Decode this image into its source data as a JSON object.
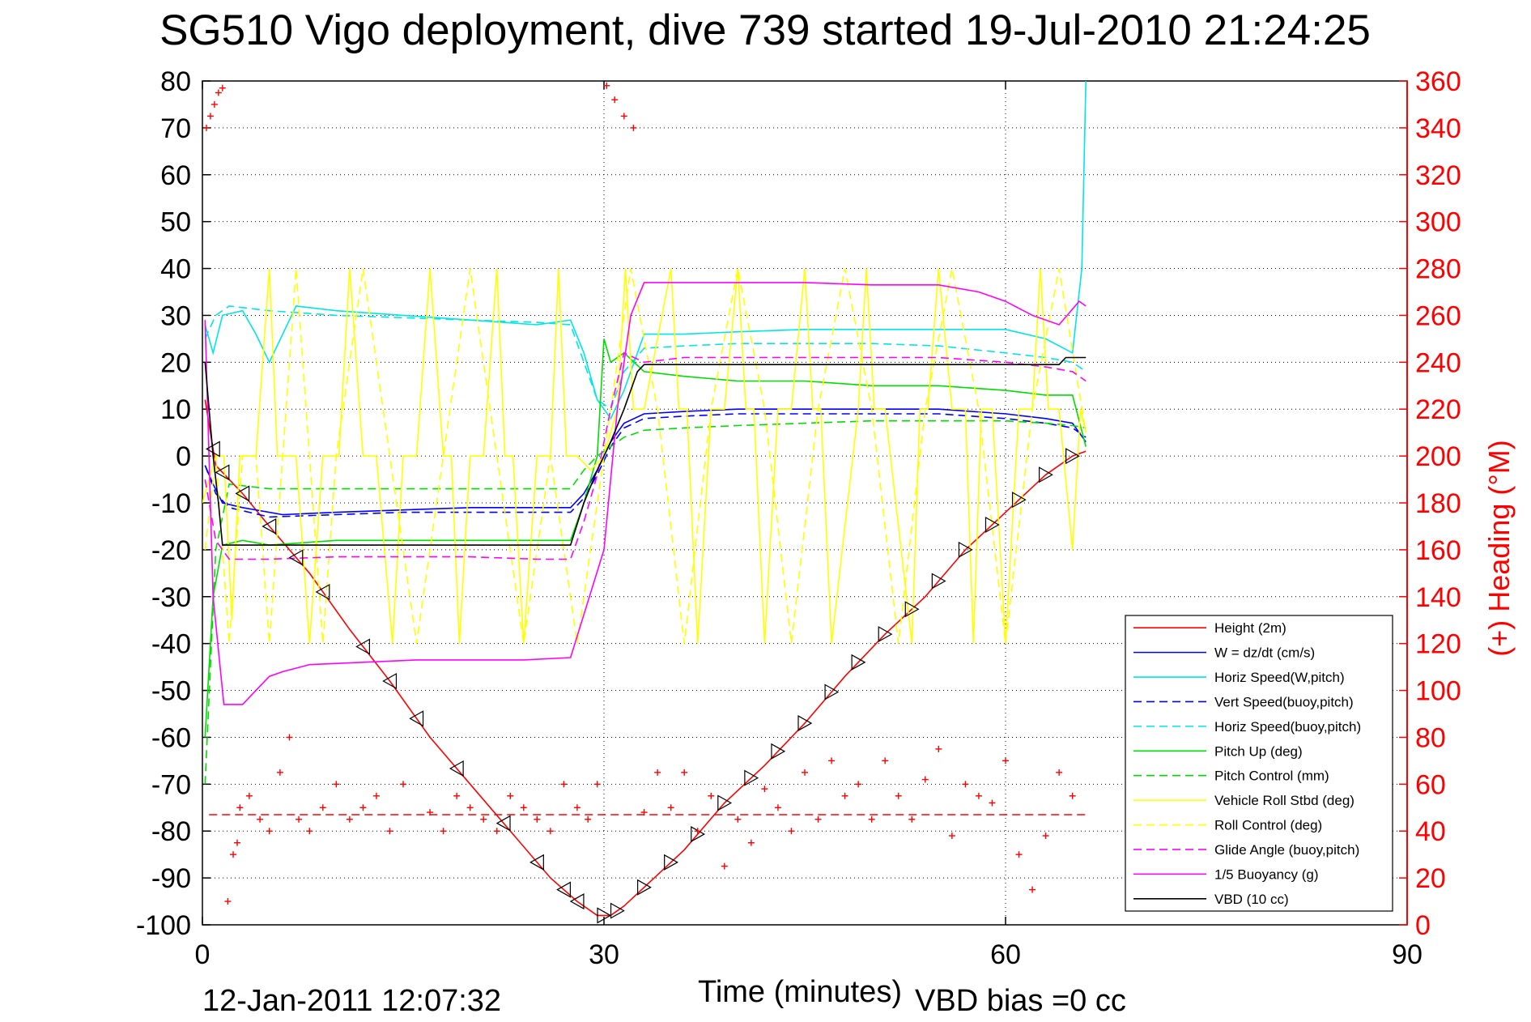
{
  "chart_data": {
    "type": "line",
    "title": "SG510 Vigo deployment, dive 739 started 19-Jul-2010 21:24:25",
    "xlabel": "Time (minutes)",
    "y2label": "(+) Heading (°M)",
    "xlim": [
      0,
      90
    ],
    "ylim": [
      -100,
      80
    ],
    "y2lim": [
      0,
      360
    ],
    "x_ticks": [
      "0",
      "30",
      "60",
      "90"
    ],
    "y_ticks": [
      "80",
      "70",
      "60",
      "50",
      "40",
      "30",
      "20",
      "10",
      "0",
      "-10",
      "-20",
      "-30",
      "-40",
      "-50",
      "-60",
      "-70",
      "-80",
      "-90",
      "-100"
    ],
    "y2_ticks": [
      "360",
      "340",
      "320",
      "300",
      "280",
      "260",
      "240",
      "220",
      "200",
      "180",
      "160",
      "140",
      "120",
      "100",
      "80",
      "60",
      "40",
      "20",
      "0"
    ],
    "grid": true,
    "legend_position": "bottom-right",
    "footer_date": "12-Jan-2011 12:07:32",
    "footer_vbd": "VBD bias =0 cc",
    "series": [
      {
        "name": "Height (2m)",
        "color": "#ff0000",
        "dash": "solid",
        "x": [
          0.2,
          1,
          2,
          3,
          5,
          8,
          11,
          14,
          17,
          20,
          23,
          26,
          28,
          29.5,
          30.5,
          31.5,
          33,
          36,
          39,
          42,
          45,
          48,
          51,
          54,
          57,
          60,
          63,
          65,
          66
        ],
        "y": [
          12,
          -2,
          -5,
          -8,
          -15,
          -25,
          -37,
          -48,
          -60,
          -70,
          -80,
          -90,
          -95,
          -98,
          -98,
          -96,
          -92,
          -84,
          -74,
          -66,
          -57,
          -47,
          -38,
          -30,
          -20,
          -12,
          -4,
          0,
          1
        ]
      },
      {
        "name": "W = dz/dt (cm/s)",
        "color": "#0000ff",
        "dash": "solid",
        "x": [
          0.2,
          0.8,
          1.5,
          3,
          6,
          10,
          15,
          20,
          25,
          27.5,
          28.5,
          29.5,
          30.5,
          31.5,
          33,
          36,
          40,
          45,
          50,
          55,
          60,
          63,
          65,
          66
        ],
        "y": [
          -2,
          -6,
          -10,
          -11,
          -12.5,
          -12,
          -11.5,
          -11,
          -11,
          -11,
          -8,
          -3,
          3,
          7,
          9,
          9.5,
          10,
          10,
          10,
          10,
          9,
          8,
          7,
          3
        ]
      },
      {
        "name": "Horiz Speed(W,pitch)",
        "color": "#00e5e5",
        "dash": "solid",
        "x": [
          0.2,
          0.8,
          1.5,
          3,
          4,
          5,
          7,
          10,
          15,
          20,
          25,
          27.5,
          28.5,
          29.5,
          30.5,
          31.5,
          33,
          36,
          40,
          45,
          50,
          55,
          60,
          63,
          65,
          65.7,
          66
        ],
        "y": [
          28,
          22,
          30,
          31,
          26,
          20,
          32,
          31,
          30,
          29,
          28,
          29,
          22,
          12,
          8,
          14,
          26,
          26,
          26.5,
          27,
          27,
          27,
          27,
          25,
          22,
          40,
          80
        ]
      },
      {
        "name": "Vert Speed(buoy,pitch)",
        "color": "#0000ff",
        "dash": "dashed",
        "x": [
          0.2,
          1,
          2,
          5,
          10,
          15,
          20,
          25,
          27.5,
          28.5,
          29.5,
          30.5,
          31.5,
          33,
          36,
          40,
          45,
          50,
          55,
          60,
          63,
          65,
          66
        ],
        "y": [
          -2,
          -8,
          -11,
          -13,
          -12.5,
          -12,
          -12,
          -12,
          -12,
          -9,
          -4,
          2,
          6,
          8,
          8.5,
          9,
          9,
          9,
          9,
          8,
          7,
          6,
          4
        ]
      },
      {
        "name": "Horiz Speed(buoy,pitch)",
        "color": "#00e5e5",
        "dash": "dashed",
        "x": [
          0.2,
          1,
          2,
          5,
          10,
          15,
          20,
          25,
          27.5,
          28.5,
          29.5,
          30.5,
          31.5,
          33,
          36,
          40,
          45,
          50,
          55,
          60,
          63,
          65,
          66
        ],
        "y": [
          25,
          30,
          32,
          31,
          30,
          29.5,
          29,
          28.5,
          28,
          20,
          12,
          10,
          18,
          23,
          23.5,
          24,
          24,
          24,
          23.5,
          22,
          21,
          20,
          18
        ]
      },
      {
        "name": "Pitch Up (deg)",
        "color": "#00dd00",
        "dash": "solid",
        "x": [
          0.2,
          0.8,
          1.5,
          3,
          5,
          10,
          15,
          20,
          25,
          27.5,
          28.5,
          29.5,
          30,
          30.5,
          31.5,
          33,
          36,
          40,
          45,
          50,
          55,
          60,
          63,
          65,
          66
        ],
        "y": [
          -60,
          -30,
          -19,
          -18,
          -19,
          -18,
          -18,
          -18,
          -18,
          -18,
          -10,
          0,
          25,
          20,
          22,
          18,
          17,
          16,
          16,
          15,
          15,
          14,
          13,
          13,
          2
        ]
      },
      {
        "name": "Pitch Control (mm)",
        "color": "#00dd00",
        "dash": "dashed",
        "x": [
          0.2,
          1,
          2,
          5,
          10,
          15,
          20,
          25,
          27.5,
          28.5,
          29.5,
          30.5,
          31.5,
          33,
          36,
          40,
          45,
          50,
          55,
          60,
          63,
          65,
          66
        ],
        "y": [
          -70,
          -20,
          -6,
          -7,
          -7,
          -7,
          -7,
          -7,
          -7,
          -3,
          0,
          2,
          4,
          5.5,
          6,
          6.5,
          7,
          7.5,
          7.5,
          7.5,
          7,
          6.5,
          6
        ]
      },
      {
        "name": "Vehicle Roll Stbd (deg)",
        "color": "#ffff00",
        "dash": "solid",
        "x": [
          0,
          1,
          1.6,
          2.2,
          2.8,
          4,
          5,
          5.6,
          6.2,
          7,
          8,
          9,
          9.6,
          10.2,
          11,
          12,
          13,
          14.2,
          15,
          16,
          17,
          18,
          18.6,
          19.2,
          20,
          21,
          22,
          22.6,
          23.2,
          24,
          25,
          26,
          26.6,
          27.2,
          28,
          29,
          30,
          31,
          31.6,
          32.2,
          33,
          35,
          35.6,
          36.2,
          37,
          38,
          39,
          40,
          40.6,
          41.2,
          42,
          43,
          44,
          45,
          45.6,
          46.2,
          47,
          49,
          49.6,
          50.2,
          51,
          53,
          53.6,
          54.2,
          55,
          56,
          57,
          57.6,
          58.2,
          59,
          60,
          61,
          62,
          62.6,
          63.2,
          64,
          65,
          65.6,
          66
        ],
        "y": [
          -10,
          0,
          0,
          -35,
          0,
          0,
          40,
          0,
          0,
          0,
          -40,
          0,
          0,
          0,
          40,
          0,
          0,
          -40,
          0,
          0,
          40,
          0,
          0,
          -40,
          0,
          0,
          40,
          0,
          0,
          -40,
          0,
          0,
          40,
          0,
          0,
          -3,
          0,
          10,
          40,
          10,
          10,
          40,
          10,
          10,
          -40,
          10,
          10,
          40,
          10,
          10,
          -40,
          10,
          10,
          40,
          10,
          10,
          -40,
          10,
          40,
          10,
          10,
          -40,
          10,
          10,
          40,
          10,
          10,
          -40,
          10,
          10,
          -40,
          10,
          10,
          40,
          10,
          10,
          -20,
          10,
          5
        ]
      },
      {
        "name": "Roll Control (deg)",
        "color": "#ffff00",
        "dash": "dashed",
        "x": [
          0.2,
          1,
          2,
          3,
          4,
          5,
          6,
          7,
          8,
          9,
          10,
          12,
          14,
          16,
          18,
          20,
          22,
          24,
          26,
          28,
          30,
          32,
          34,
          36,
          38,
          40,
          42,
          44,
          46,
          48,
          50,
          52,
          54,
          56,
          58,
          60,
          62,
          64,
          66
        ],
        "y": [
          -20,
          0,
          -40,
          0,
          0,
          -40,
          0,
          40,
          0,
          -40,
          0,
          40,
          0,
          -40,
          0,
          40,
          0,
          -40,
          0,
          -40,
          0,
          40,
          10,
          -40,
          10,
          40,
          10,
          -40,
          10,
          40,
          10,
          -40,
          10,
          40,
          10,
          -40,
          10,
          40,
          5
        ]
      },
      {
        "name": "Glide Angle (buoy,pitch)",
        "color": "#ff00ff",
        "dash": "dashed",
        "x": [
          0.2,
          1,
          2,
          5,
          10,
          15,
          20,
          25,
          27.5,
          28.5,
          29.5,
          30.5,
          31.5,
          33,
          36,
          40,
          45,
          50,
          55,
          60,
          63,
          65,
          66
        ],
        "y": [
          -5,
          -18,
          -22,
          -22,
          -21.5,
          -21.5,
          -21.5,
          -22,
          -22,
          -14,
          -4,
          10,
          22,
          20,
          21,
          21,
          21,
          21,
          21,
          20,
          19,
          18,
          16
        ]
      },
      {
        "name": "1/5 Buoyancy (g)",
        "color": "#ff00ff",
        "dash": "solid",
        "x": [
          0.2,
          0.8,
          1.6,
          3,
          4,
          5,
          6,
          8,
          12,
          16,
          20,
          24,
          27.5,
          30,
          31,
          32,
          33,
          36,
          40,
          45,
          50,
          55,
          58,
          60,
          62,
          64,
          65.5,
          66
        ],
        "y": [
          29,
          -30,
          -53,
          -53,
          -50,
          -47,
          -46,
          -44.5,
          -44,
          -43.5,
          -43.5,
          -43.5,
          -43,
          -20,
          10,
          30,
          37,
          37,
          37,
          37,
          36.5,
          36.5,
          35,
          33,
          30,
          28,
          33,
          32
        ]
      },
      {
        "name": "VBD (10 cc)",
        "color": "#000000",
        "dash": "solid",
        "x": [
          0.2,
          0.8,
          1.2,
          1.5,
          2,
          5,
          10,
          15,
          20,
          25,
          27.5,
          28.5,
          29.5,
          30.5,
          31.5,
          32.5,
          33,
          36,
          40,
          45,
          50,
          55,
          60,
          63,
          64,
          64.5,
          66
        ],
        "y": [
          20,
          0,
          -10,
          -19,
          -19,
          -19,
          -19,
          -19,
          -19,
          -19,
          -19,
          -10,
          -3,
          3,
          10,
          18,
          19.5,
          19.5,
          19.5,
          19.5,
          19.5,
          19.5,
          19.5,
          19.5,
          19.5,
          21,
          21
        ]
      }
    ],
    "heading_series": {
      "name": "Heading",
      "color": "#ff0000",
      "marker": "+",
      "x": [
        0.3,
        0.6,
        0.9,
        1.2,
        1.5,
        1.9,
        2.3,
        2.6,
        2.8,
        3.5,
        4.3,
        5,
        5.8,
        6.5,
        7.2,
        8,
        9,
        10,
        11,
        12,
        13,
        14,
        15,
        17,
        18,
        19,
        20,
        21,
        22,
        23,
        24,
        25,
        26,
        27,
        28,
        28.8,
        29.5,
        30.2,
        30.8,
        31.5,
        32.2,
        33,
        34,
        35,
        36,
        37,
        38,
        39,
        40,
        41,
        42,
        43,
        44,
        45,
        46,
        47,
        48,
        49,
        50,
        51,
        52,
        53,
        54,
        55,
        56,
        57,
        58,
        59,
        60,
        61,
        62,
        63,
        64,
        65
      ],
      "y": [
        340,
        345,
        350,
        355,
        357,
        10,
        30,
        35,
        50,
        55,
        45,
        40,
        65,
        80,
        45,
        40,
        50,
        60,
        45,
        50,
        55,
        40,
        60,
        48,
        40,
        55,
        50,
        45,
        40,
        55,
        50,
        45,
        40,
        60,
        50,
        45,
        60,
        358,
        352,
        345,
        340,
        48,
        65,
        50,
        65,
        40,
        55,
        25,
        45,
        35,
        58,
        50,
        40,
        65,
        45,
        70,
        55,
        60,
        45,
        70,
        55,
        45,
        62,
        75,
        38,
        60,
        55,
        52,
        70,
        30,
        15,
        38,
        65,
        55
      ]
    },
    "heading_mean": 47,
    "triangle_marker_x": [
      0.8,
      1.5,
      3,
      5,
      7,
      9,
      12,
      14,
      16,
      19,
      22.5,
      25,
      27,
      28,
      30,
      31,
      33,
      35,
      37,
      39,
      41,
      43,
      45,
      47,
      49,
      51,
      53,
      55,
      57,
      59,
      61,
      63,
      65
    ]
  }
}
